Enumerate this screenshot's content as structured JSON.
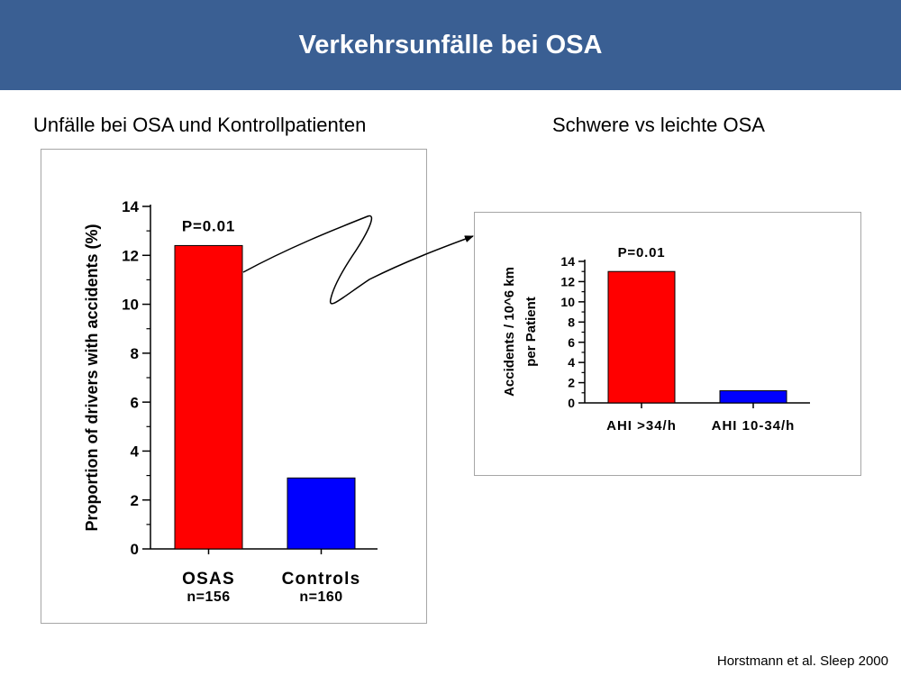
{
  "header": {
    "title": "Verkehrsunfälle bei OSA"
  },
  "sections": {
    "left_title": "Unfälle bei OSA und Kontrollpatienten",
    "right_title": "Schwere vs leichte OSA"
  },
  "citation": "Horstmann et al. Sleep 2000",
  "colors": {
    "header_bg": "#3a5f93",
    "red": "#ff0000",
    "blue": "#0000ff"
  },
  "chart_data": [
    {
      "type": "bar",
      "categories": [
        "OSAS",
        "Controls"
      ],
      "subcategories": [
        "n=156",
        "n=160"
      ],
      "values": [
        12.4,
        2.9
      ],
      "colors": [
        "#ff0000",
        "#0000ff"
      ],
      "ylabel": "Proportion of drivers with accidents (%)",
      "ylim": [
        0,
        14
      ],
      "yticks": [
        0,
        2,
        4,
        6,
        8,
        10,
        12,
        14
      ],
      "annotation": "P=0.01"
    },
    {
      "type": "bar",
      "categories": [
        "AHI >34/h",
        "AHI 10-34/h"
      ],
      "values": [
        13.0,
        1.2
      ],
      "colors": [
        "#ff0000",
        "#0000ff"
      ],
      "ylabel_lines": [
        "Accidents / 10^6 km",
        "per Patient"
      ],
      "ylim": [
        0,
        14
      ],
      "yticks": [
        0,
        2,
        4,
        6,
        8,
        10,
        12,
        14
      ],
      "annotation": "P=0.01"
    }
  ]
}
